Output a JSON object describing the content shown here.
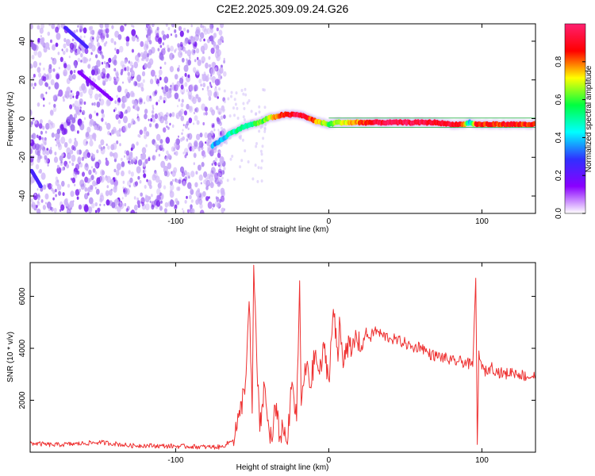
{
  "figure": {
    "title": "C2E2.2025.309.09.24.G26"
  },
  "chart_data": [
    {
      "type": "heatmap",
      "id": "spectrogram",
      "xlabel": "Height of straight line (km)",
      "ylabel": "Frequency (Hz)",
      "xlim": [
        -195,
        135
      ],
      "ylim": [
        -49,
        49
      ],
      "xticks": [
        -100,
        0,
        100
      ],
      "yticks": [
        -40,
        -20,
        0,
        20,
        40
      ],
      "colorbar": {
        "label": "Normalized spectral amplitude",
        "range": [
          0,
          1
        ],
        "ticks": [
          0.0,
          0.2,
          0.4,
          0.6,
          0.8
        ],
        "tick_labels": [
          "0.0",
          "0.2",
          "0.4",
          "0.6",
          "0.8"
        ],
        "colors": [
          "#ffffff",
          "#8a00ff",
          "#3030ff",
          "#00ffff",
          "#00ff40",
          "#ffff00",
          "#ff0000",
          "#ff2070"
        ]
      },
      "ridge": {
        "x": [
          -76,
          -70,
          -65,
          -60,
          -55,
          -50,
          -45,
          -40,
          -35,
          -30,
          -25,
          -20,
          -15,
          -10,
          -5,
          0,
          5,
          10,
          20,
          30,
          40,
          50,
          60,
          70,
          80,
          88,
          92,
          96,
          110,
          125,
          135
        ],
        "y": [
          -14,
          -11,
          -8,
          -6,
          -4,
          -3,
          -2,
          0,
          1,
          2,
          2,
          2,
          1,
          -1,
          -2,
          -3,
          -2,
          -2,
          -2,
          -2,
          -2,
          -2,
          -2,
          -2,
          -3,
          -3,
          -2,
          -3,
          -3,
          -3,
          -3
        ],
        "amplitude": [
          0.35,
          0.4,
          0.45,
          0.5,
          0.5,
          0.55,
          0.6,
          0.65,
          0.75,
          0.85,
          0.9,
          0.95,
          0.9,
          0.8,
          0.7,
          0.6,
          0.65,
          0.7,
          0.8,
          0.9,
          0.95,
          0.95,
          0.95,
          0.9,
          0.9,
          0.85,
          0.3,
          0.85,
          0.85,
          0.85,
          0.85
        ]
      },
      "noise_region": [
        -195,
        -72
      ],
      "streaks": [
        {
          "x": [
            -172,
            -158
          ],
          "y": [
            47,
            37
          ],
          "amplitude": 0.25
        },
        {
          "x": [
            -163,
            -142
          ],
          "y": [
            24,
            10
          ],
          "amplitude": 0.15
        },
        {
          "x": [
            -194,
            -188
          ],
          "y": [
            -27,
            -35
          ],
          "amplitude": 0.25
        }
      ]
    },
    {
      "type": "line",
      "id": "snr",
      "xlabel": "Height of straight line (km)",
      "ylabel": "SNR (10 * v/v)",
      "xlim": [
        -195,
        135
      ],
      "ylim": [
        0,
        7300
      ],
      "xticks": [
        -100,
        0,
        100
      ],
      "yticks": [
        2000,
        4000,
        6000
      ],
      "color": "#ee3030",
      "series": [
        {
          "name": "SNR",
          "x": [
            -195,
            -180,
            -165,
            -150,
            -140,
            -130,
            -120,
            -110,
            -100,
            -90,
            -80,
            -70,
            -63,
            -58,
            -54,
            -52,
            -50,
            -49,
            -47,
            -45,
            -42,
            -40,
            -37,
            -35,
            -32,
            -30,
            -27,
            -24,
            -21,
            -19,
            -18,
            -16,
            -14,
            -12,
            -9,
            -6,
            -3,
            0,
            3,
            6,
            7,
            9,
            12,
            15,
            18,
            21,
            24,
            27,
            30,
            35,
            40,
            45,
            50,
            55,
            60,
            65,
            70,
            75,
            80,
            85,
            90,
            94,
            96,
            97,
            98,
            100,
            103,
            106,
            110,
            115,
            120,
            125,
            130,
            135
          ],
          "y": [
            350,
            280,
            320,
            380,
            330,
            250,
            260,
            240,
            230,
            220,
            200,
            200,
            450,
            1400,
            3000,
            5800,
            1500,
            7200,
            3500,
            800,
            2600,
            1200,
            400,
            1800,
            600,
            1000,
            300,
            2700,
            1200,
            6600,
            1800,
            2800,
            3500,
            2500,
            3800,
            3000,
            4000,
            2800,
            5500,
            3500,
            5200,
            3600,
            4200,
            3800,
            4500,
            3900,
            4600,
            4400,
            4700,
            4500,
            4400,
            4300,
            4200,
            4000,
            4100,
            3800,
            3700,
            3650,
            3500,
            3500,
            3450,
            3300,
            6700,
            300,
            3900,
            3200,
            3100,
            3300,
            3100,
            3000,
            3100,
            3000,
            2900,
            2950
          ]
        }
      ]
    }
  ]
}
